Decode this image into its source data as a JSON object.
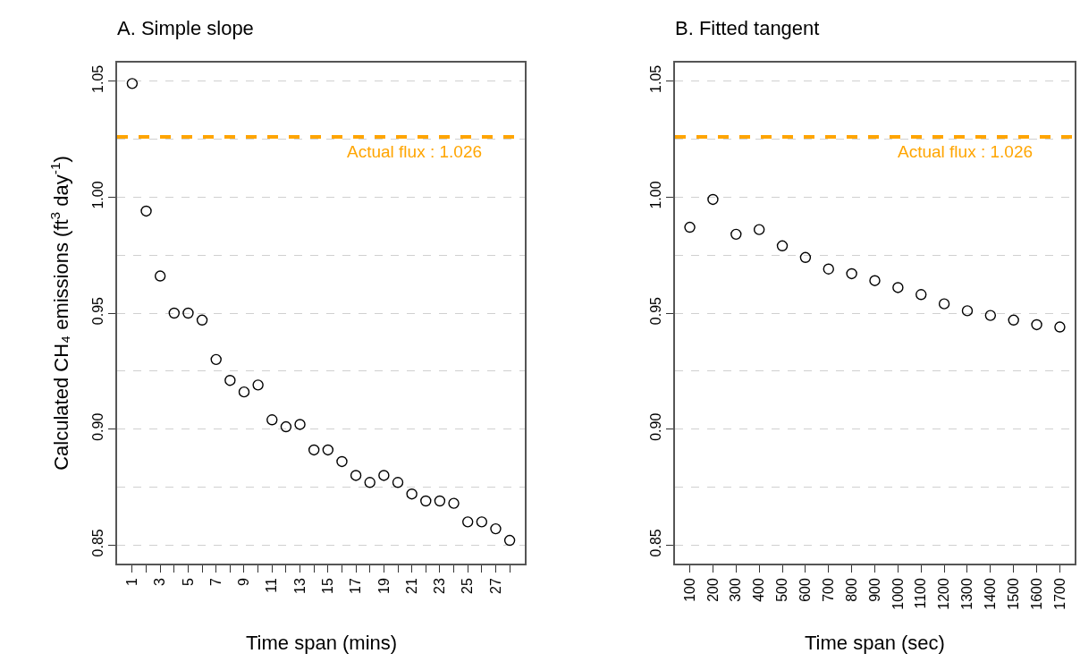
{
  "chart_data": [
    {
      "type": "scatter",
      "title": "A. Simple slope",
      "xlabel": "Time span (mins)",
      "ylabel": "Calculated CH₄ emissions (ft$^{3}$ day$^{-1}$)",
      "x": [
        1,
        2,
        3,
        4,
        5,
        6,
        7,
        8,
        9,
        10,
        11,
        12,
        13,
        14,
        15,
        16,
        17,
        18,
        19,
        20,
        21,
        22,
        23,
        24,
        25,
        26,
        27,
        28
      ],
      "series": [
        {
          "color": "#000000",
          "values": [
            1.049,
            0.994,
            0.966,
            0.95,
            0.95,
            0.947,
            0.93,
            0.921,
            0.916,
            0.919,
            0.904,
            0.901,
            0.902,
            0.891,
            0.891,
            0.886,
            0.88,
            0.877,
            0.88,
            0.877,
            0.872,
            0.869,
            0.869,
            0.868,
            0.86,
            0.86,
            0.857,
            0.852
          ]
        }
      ],
      "xlim": [
        -0.08,
        29.08
      ],
      "xticks": [
        1,
        {
          "value": 2,
          "label": null
        },
        3,
        {
          "value": 4,
          "label": null
        },
        5,
        {
          "value": 6,
          "label": null
        },
        7,
        {
          "value": 8,
          "label": null
        },
        9,
        {
          "value": 10,
          "label": null
        },
        11,
        {
          "value": 12,
          "label": null
        },
        13,
        {
          "value": 14,
          "label": null
        },
        15,
        {
          "value": 16,
          "label": null
        },
        17,
        {
          "value": 18,
          "label": null
        },
        19,
        {
          "value": 20,
          "label": null
        },
        21,
        {
          "value": 22,
          "label": null
        },
        23,
        {
          "value": 24,
          "label": null
        },
        25,
        {
          "value": 26,
          "label": null
        },
        27,
        {
          "value": 28,
          "label": null
        }
      ],
      "ylim": [
        0.842,
        1.058
      ],
      "yticks": [
        {
          "value": 0.85,
          "label": "0.85"
        },
        {
          "value": 0.9,
          "label": "0.90"
        },
        {
          "value": 0.95,
          "label": "0.95"
        },
        {
          "value": 1.0,
          "label": "1.00"
        },
        {
          "value": 1.05,
          "label": "1.05"
        }
      ],
      "ref_lines": [
        {
          "axis": "y",
          "value": 1.026,
          "label": "Actual flux : 1.026",
          "color": "#ffa500",
          "line_style": "dashed"
        }
      ],
      "grid": "y",
      "marker": "circle"
    },
    {
      "type": "scatter",
      "title": "B. Fitted tangent",
      "xlabel": "Time span (sec)",
      "x": [
        100,
        200,
        300,
        400,
        500,
        600,
        700,
        800,
        900,
        1000,
        1100,
        1200,
        1300,
        1400,
        1500,
        1600,
        1700
      ],
      "series": [
        {
          "color": "#000000",
          "values": [
            0.987,
            0.999,
            0.984,
            0.986,
            0.979,
            0.974,
            0.969,
            0.967,
            0.964,
            0.961,
            0.958,
            0.954,
            0.951,
            0.949,
            0.947,
            0.945,
            0.944
          ]
        }
      ],
      "xlim": [
        36,
        1764
      ],
      "xticks": [
        100,
        200,
        300,
        400,
        500,
        600,
        700,
        800,
        900,
        1000,
        1100,
        1200,
        1300,
        1400,
        1500,
        1600,
        1700
      ],
      "ylim": [
        0.842,
        1.058
      ],
      "yticks": [
        {
          "value": 0.85,
          "label": "0.85"
        },
        {
          "value": 0.9,
          "label": "0.90"
        },
        {
          "value": 0.95,
          "label": "0.95"
        },
        {
          "value": 1.0,
          "label": "1.00"
        },
        {
          "value": 1.05,
          "label": "1.05"
        }
      ],
      "ref_lines": [
        {
          "axis": "y",
          "value": 1.026,
          "label": "Actual flux : 1.026",
          "color": "#ffa500",
          "line_style": "dashed"
        }
      ],
      "grid": "y",
      "marker": "circle"
    }
  ]
}
